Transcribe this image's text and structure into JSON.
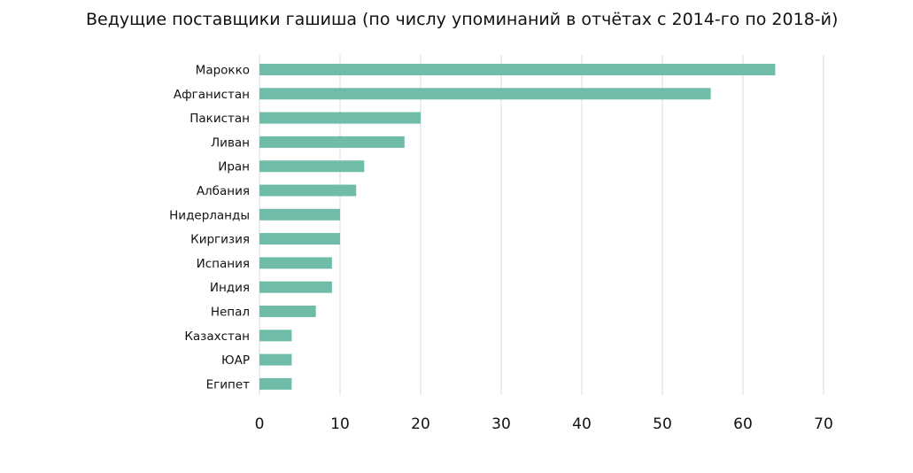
{
  "chart_data": {
    "type": "bar",
    "orientation": "horizontal",
    "title": "Ведущие поставщики гашиша (по числу упоминаний в отчётах с 2014-го по 2018-й)",
    "xlabel": "",
    "ylabel": "",
    "categories": [
      "Марокко",
      "Афганистан",
      "Пакистан",
      "Ливан",
      "Иран",
      "Албания",
      "Нидерланды",
      "Киргизия",
      "Испания",
      "Индия",
      "Непал",
      "Казахстан",
      "ЮАР",
      "Египет"
    ],
    "values": [
      64,
      56,
      20,
      18,
      13,
      12,
      10,
      10,
      9,
      9,
      7,
      4,
      4,
      4
    ],
    "xlim": [
      0,
      70
    ],
    "xticks": [
      "0",
      "10",
      "20",
      "30",
      "40",
      "50",
      "60",
      "70"
    ],
    "grid": "vertical",
    "legend": "none",
    "bar_color": "#6fbda8",
    "grid_color": "#d6e6e2"
  }
}
